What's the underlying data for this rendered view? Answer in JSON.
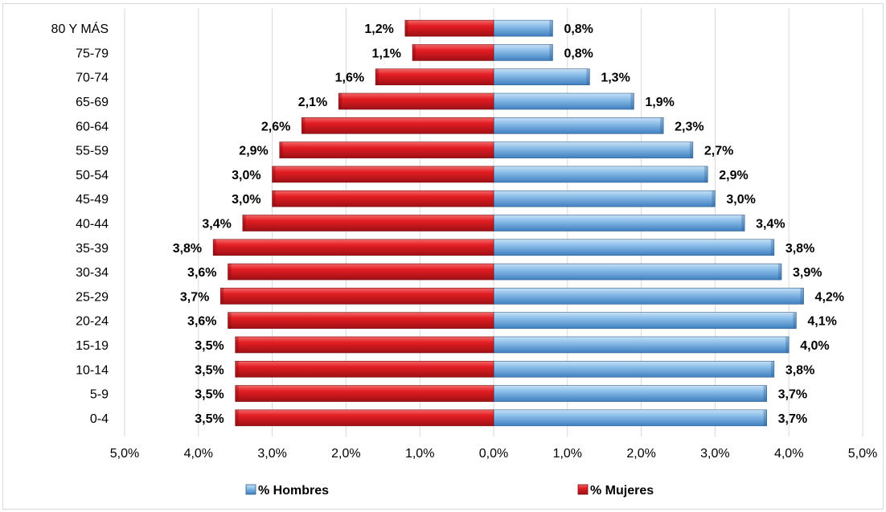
{
  "chart_data": {
    "type": "bar",
    "orientation": "horizontal",
    "title": "",
    "xlabel": "",
    "ylabel": "",
    "xlim": [
      -5,
      5
    ],
    "x_ticks": [
      -5,
      -4,
      -3,
      -2,
      -1,
      0,
      1,
      2,
      3,
      4,
      5
    ],
    "x_tick_labels": [
      "5,0%",
      "4,0%",
      "3,0%",
      "2,0%",
      "1,0%",
      "0,0%",
      "1,0%",
      "2,0%",
      "3,0%",
      "4,0%",
      "5,0%"
    ],
    "grid": "vertical",
    "legend_position": "bottom",
    "categories": [
      "0-4",
      "5-9",
      "10-14",
      "15-19",
      "20-24",
      "25-29",
      "30-34",
      "35-39",
      "40-44",
      "45-49",
      "50-54",
      "55-59",
      "60-64",
      "65-69",
      "70-74",
      "75-79",
      "80 Y MÁS"
    ],
    "series": [
      {
        "name": "% Hombres",
        "color": "#6fa8dc",
        "side": "right",
        "values": [
          3.7,
          3.7,
          3.8,
          4.0,
          4.1,
          4.2,
          3.9,
          3.8,
          3.4,
          3.0,
          2.9,
          2.7,
          2.3,
          1.9,
          1.3,
          0.8,
          0.8
        ],
        "labels": [
          "3,7%",
          "3,7%",
          "3,8%",
          "4,0%",
          "4,1%",
          "4,2%",
          "3,9%",
          "3,8%",
          "3,4%",
          "3,0%",
          "2,9%",
          "2,7%",
          "2,3%",
          "1,9%",
          "1,3%",
          "0,8%",
          "0,8%"
        ]
      },
      {
        "name": "% Mujeres",
        "color": "#e31e24",
        "side": "left",
        "values": [
          3.5,
          3.5,
          3.5,
          3.5,
          3.6,
          3.7,
          3.6,
          3.8,
          3.4,
          3.0,
          3.0,
          2.9,
          2.6,
          2.1,
          1.6,
          1.1,
          1.2
        ],
        "labels": [
          "3,5%",
          "3,5%",
          "3,5%",
          "3,5%",
          "3,6%",
          "3,7%",
          "3,6%",
          "3,8%",
          "3,4%",
          "3,0%",
          "3,0%",
          "2,9%",
          "2,6%",
          "2,1%",
          "1,6%",
          "1,1%",
          "1,2%"
        ]
      }
    ]
  }
}
